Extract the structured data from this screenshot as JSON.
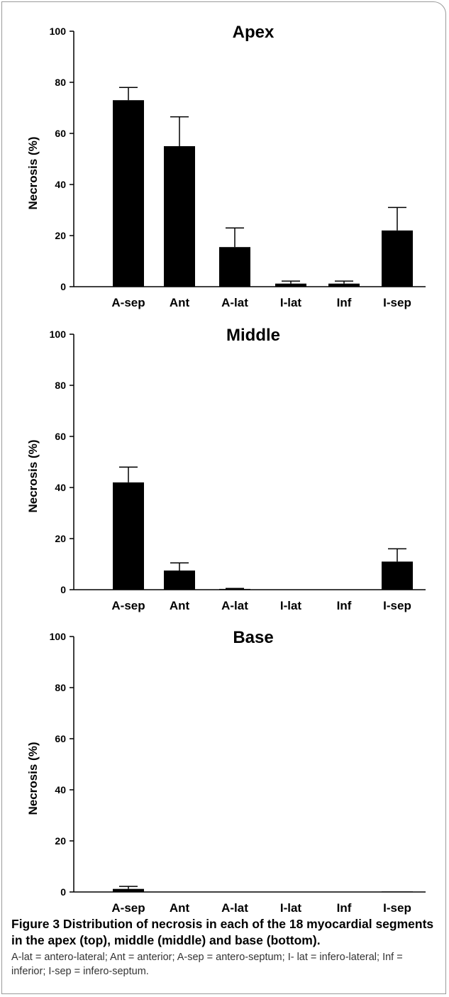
{
  "chart_data": [
    {
      "type": "bar",
      "title": "Apex",
      "ylabel": "Necrosis (%)",
      "xlabel": "",
      "ylim": [
        0,
        100
      ],
      "yticks": [
        0,
        20,
        40,
        60,
        80,
        100
      ],
      "categories": [
        "A-sep",
        "Ant",
        "A-lat",
        "I-lat",
        "Inf",
        "I-sep"
      ],
      "values": [
        73,
        55,
        15.5,
        1.2,
        1.2,
        22
      ],
      "error": [
        5,
        11.5,
        7.5,
        1,
        1,
        9
      ],
      "grid": false,
      "bar_color": "#000000"
    },
    {
      "type": "bar",
      "title": "Middle",
      "ylabel": "Necrosis (%)",
      "xlabel": "",
      "ylim": [
        0,
        100
      ],
      "yticks": [
        0,
        20,
        40,
        60,
        80,
        100
      ],
      "categories": [
        "A-sep",
        "Ant",
        "A-lat",
        "I-lat",
        "Inf",
        "I-sep"
      ],
      "values": [
        42,
        7.5,
        0.3,
        0,
        0,
        11
      ],
      "error": [
        6,
        3,
        0.2,
        0,
        0,
        5
      ],
      "grid": false,
      "bar_color": "#000000"
    },
    {
      "type": "bar",
      "title": "Base",
      "ylabel": "Necrosis (%)",
      "xlabel": "",
      "ylim": [
        0,
        100
      ],
      "yticks": [
        0,
        20,
        40,
        60,
        80,
        100
      ],
      "categories": [
        "A-sep",
        "Ant",
        "A-lat",
        "I-lat",
        "Inf",
        "I-sep"
      ],
      "values": [
        1.2,
        0,
        0,
        0,
        0,
        0.2
      ],
      "error": [
        1,
        0,
        0,
        0,
        0,
        0
      ],
      "grid": false,
      "bar_color": "#000000"
    }
  ],
  "caption": {
    "title": "Figure 3 Distribution of necrosis in each of the 18 myocardial segments in the apex (top), middle (middle) and base (bottom).",
    "abbreviations": "A-lat = antero-lateral; Ant = anterior; A-sep = antero-septum; I- lat = infero-lateral; Inf = inferior; I-sep = infero-septum."
  }
}
